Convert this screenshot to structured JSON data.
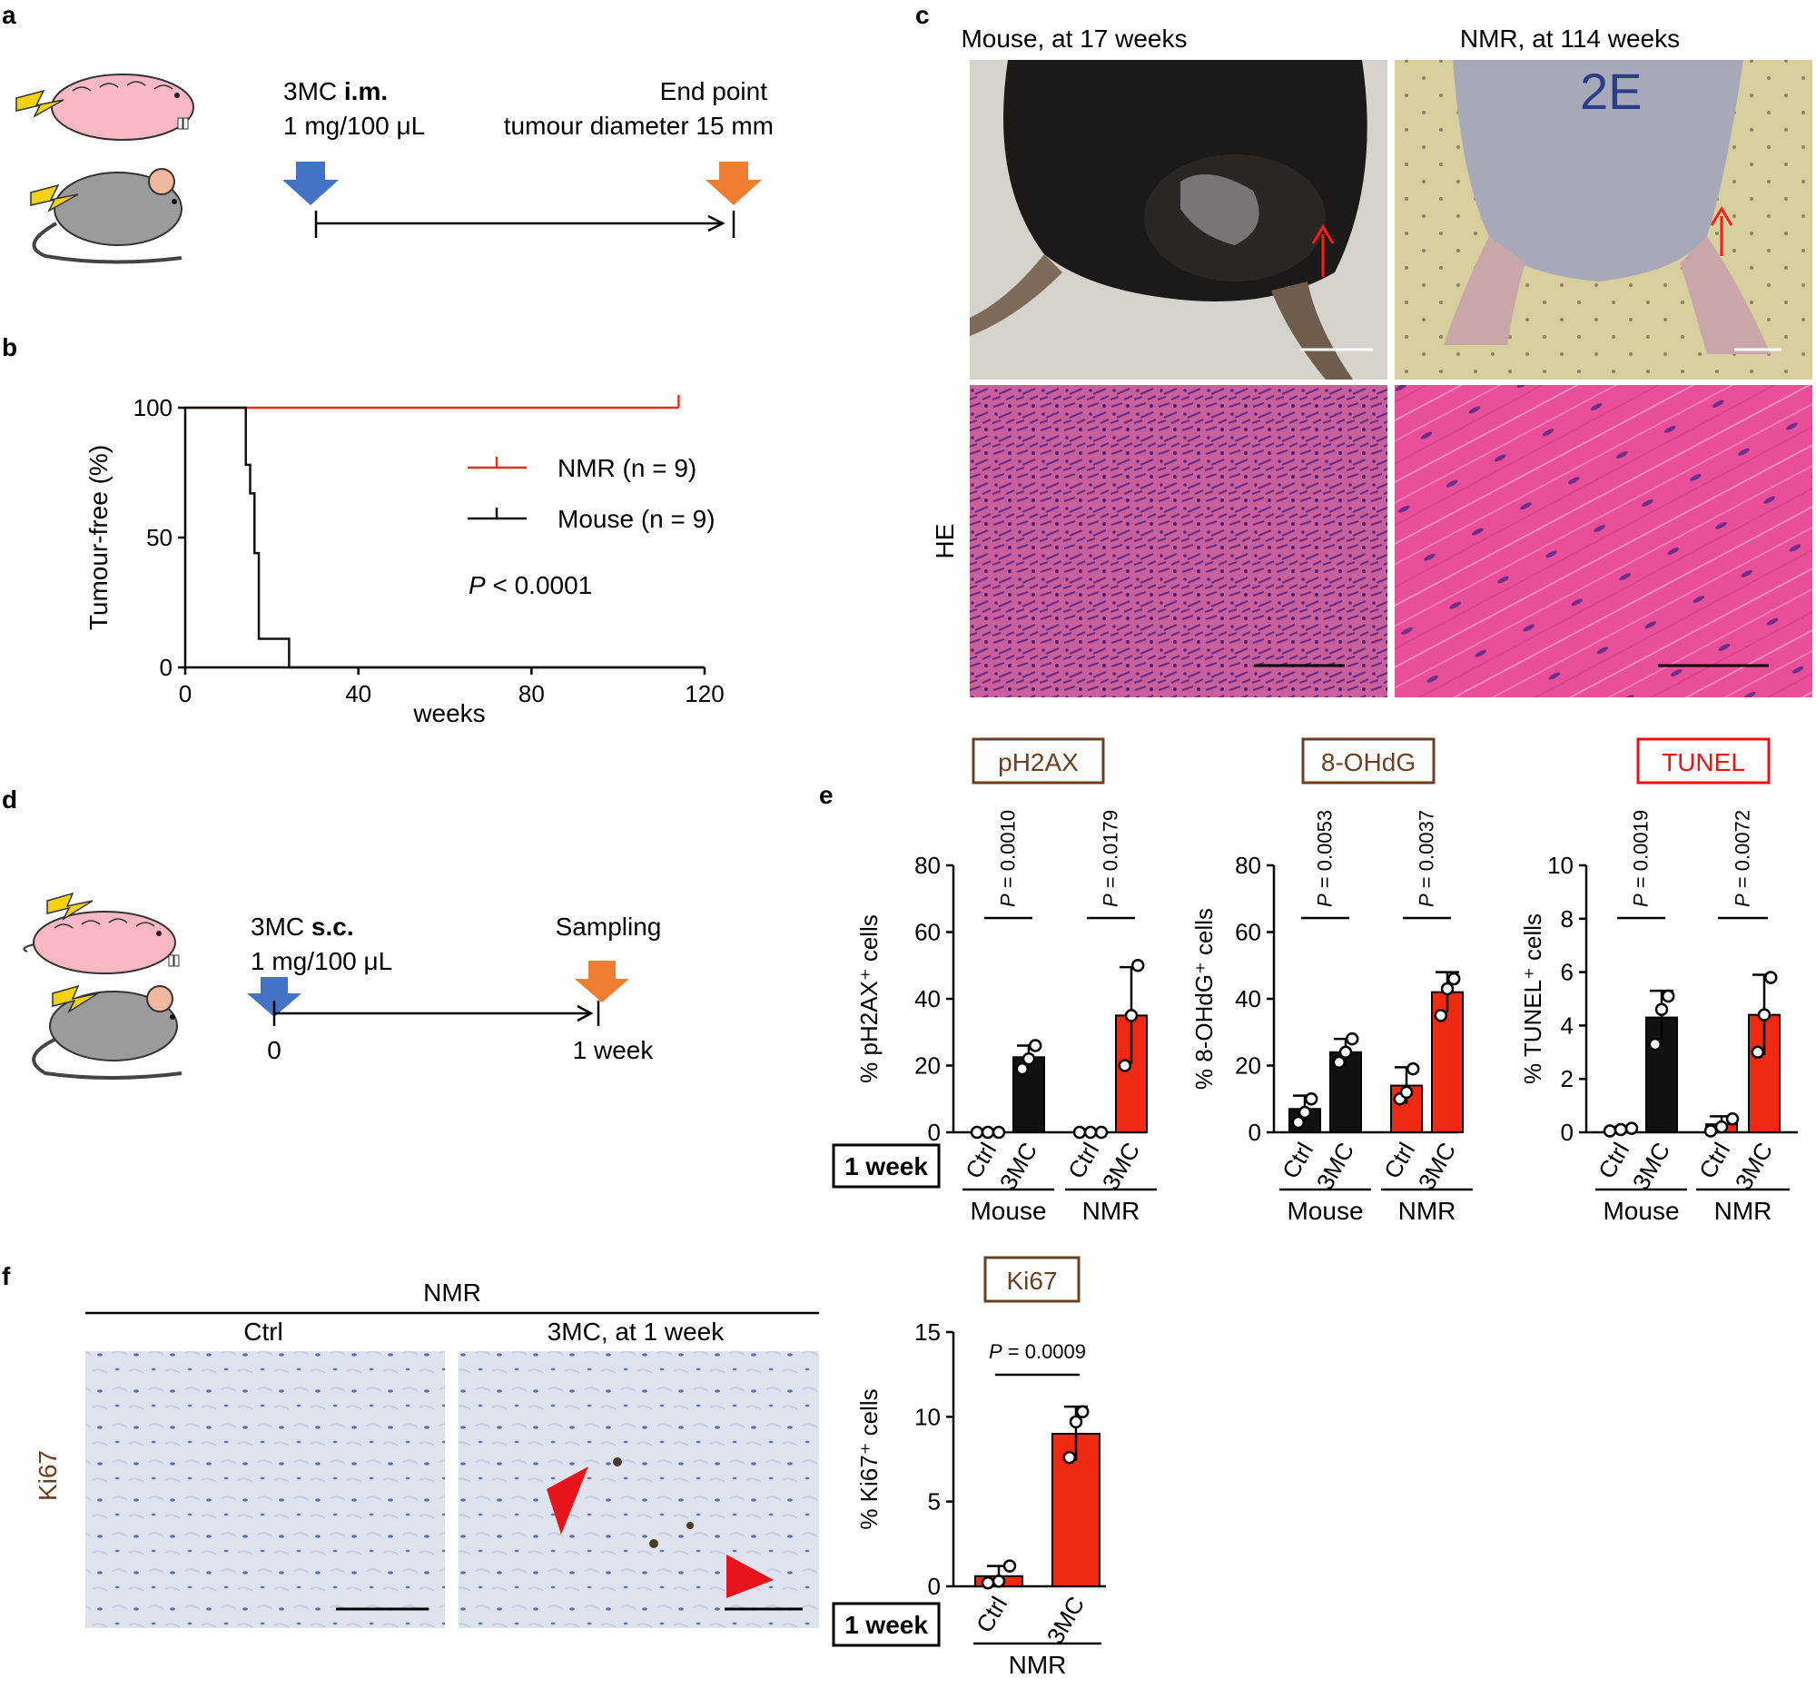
{
  "panel_labels": {
    "a": "a",
    "b": "b",
    "c": "c",
    "d": "d",
    "e": "e",
    "f": "f"
  },
  "colors": {
    "nmr_red": "#ee2a12",
    "mouse_black": "#111111",
    "arrow_blue": "#4472c4",
    "arrow_orange": "#ed7d31",
    "stain_brown": "#6b3f1f",
    "tunel_red": "#ee1111",
    "arrowhead_red": "#e8141b"
  },
  "panel_a": {
    "injection_line1": "3MC ",
    "injection_bold": "i.m.",
    "injection_line2": "1 mg/100 μL",
    "endpoint_line1": "End point",
    "endpoint_line2": "tumour diameter 15 mm",
    "icons": [
      "naked-mole-rat-icon",
      "mouse-icon",
      "lightning-icon",
      "down-arrow-icon"
    ]
  },
  "panel_d": {
    "injection_line1": "3MC ",
    "injection_bold": "s.c.",
    "injection_line2": "1 mg/100 μL",
    "sampling": "Sampling",
    "start_tick": "0",
    "end_tick": "1 week"
  },
  "panel_c": {
    "mouse_title": "Mouse, at 17 weeks",
    "nmr_title": "NMR, at 114 weeks",
    "stain_label": "HE",
    "nmr_marker": "2E"
  },
  "panel_f": {
    "group": "NMR",
    "ctrl_title": "Ctrl",
    "treated_title": "3MC, at 1 week",
    "stain_label": "Ki67"
  },
  "chart_data": [
    {
      "id": "b",
      "type": "line",
      "ylabel": "Tumour-free (%)",
      "xlabel": "weeks",
      "xlim": [
        0,
        120
      ],
      "ylim": [
        0,
        100
      ],
      "xticks": [
        "0",
        "40",
        "80",
        "120"
      ],
      "yticks": [
        "0",
        "50",
        "100"
      ],
      "series": [
        {
          "name": "NMR",
          "n_label": "(n = 9)",
          "color": "#ee2a12",
          "steps": [
            [
              0,
              100
            ],
            [
              114,
              100
            ]
          ],
          "censor": [
            114
          ]
        },
        {
          "name": "Mouse",
          "n_label": "(n = 9)",
          "color": "#111111",
          "steps": [
            [
              0,
              100
            ],
            [
              14,
              100
            ],
            [
              14,
              78
            ],
            [
              15,
              78
            ],
            [
              15,
              67
            ],
            [
              16,
              67
            ],
            [
              16,
              44
            ],
            [
              17,
              44
            ],
            [
              17,
              11
            ],
            [
              24,
              11
            ],
            [
              24,
              0
            ],
            [
              120,
              0
            ]
          ],
          "censor": []
        }
      ],
      "p_text": "< 0.0001",
      "p_symbol": "P"
    },
    {
      "id": "e1",
      "type": "bar",
      "stain": "pH2AX",
      "ylabel": "% pH2AX⁺ cells",
      "yticks": [
        "0",
        "20",
        "40",
        "60",
        "80"
      ],
      "ylim": [
        0,
        80
      ],
      "categories": [
        "Ctrl",
        "3MC",
        "Ctrl",
        "3MC"
      ],
      "groups": [
        "Mouse",
        "NMR"
      ],
      "week_label": "1 week",
      "values": [
        0,
        22.5,
        0,
        35
      ],
      "errors": [
        0,
        3.5,
        0,
        14.5
      ],
      "points": [
        [
          0,
          0,
          0
        ],
        [
          19,
          22,
          26
        ],
        [
          0,
          0,
          0
        ],
        [
          20,
          35,
          50
        ]
      ],
      "pvalues": [
        "P = 0.0010",
        "P = 0.0179"
      ]
    },
    {
      "id": "e2",
      "type": "bar",
      "stain": "8-OHdG",
      "ylabel": "% 8-OHdG⁺ cells",
      "yticks": [
        "0",
        "20",
        "40",
        "60",
        "80"
      ],
      "ylim": [
        0,
        80
      ],
      "categories": [
        "Ctrl",
        "3MC",
        "Ctrl",
        "3MC"
      ],
      "groups": [
        "Mouse",
        "NMR"
      ],
      "values": [
        7,
        24,
        14,
        42
      ],
      "errors": [
        4,
        4,
        5.5,
        6
      ],
      "points": [
        [
          3,
          6,
          10
        ],
        [
          21,
          24,
          28
        ],
        [
          10,
          12,
          19
        ],
        [
          35,
          43,
          46
        ]
      ],
      "pvalues": [
        "P = 0.0053",
        "P = 0.0037"
      ]
    },
    {
      "id": "e3",
      "type": "bar",
      "stain": "TUNEL",
      "ylabel": "% TUNEL⁺ cells",
      "yticks": [
        "0",
        "2",
        "4",
        "6",
        "8",
        "10"
      ],
      "ylim": [
        0,
        10
      ],
      "categories": [
        "Ctrl",
        "3MC",
        "Ctrl",
        "3MC"
      ],
      "groups": [
        "Mouse",
        "NMR"
      ],
      "values": [
        0.1,
        4.3,
        0.3,
        4.4
      ],
      "errors": [
        0.1,
        1.0,
        0.3,
        1.5
      ],
      "points": [
        [
          0.05,
          0.1,
          0.15
        ],
        [
          3.3,
          4.6,
          5.1
        ],
        [
          0.05,
          0.2,
          0.5
        ],
        [
          3.0,
          4.4,
          5.8
        ]
      ],
      "pvalues": [
        "P = 0.0019",
        "P = 0.0072"
      ]
    },
    {
      "id": "f",
      "type": "bar",
      "stain": "Ki67",
      "ylabel": "% Ki67⁺ cells",
      "yticks": [
        "0",
        "5",
        "10",
        "15"
      ],
      "ylim": [
        0,
        15
      ],
      "categories": [
        "Ctrl",
        "3MC"
      ],
      "groups": [
        "NMR"
      ],
      "week_label": "1 week",
      "values": [
        0.6,
        9.0
      ],
      "errors": [
        0.6,
        1.6
      ],
      "points": [
        [
          0.2,
          0.3,
          1.2
        ],
        [
          7.6,
          9.7,
          10.3
        ]
      ],
      "pvalues": [
        "P = 0.0009"
      ]
    }
  ]
}
